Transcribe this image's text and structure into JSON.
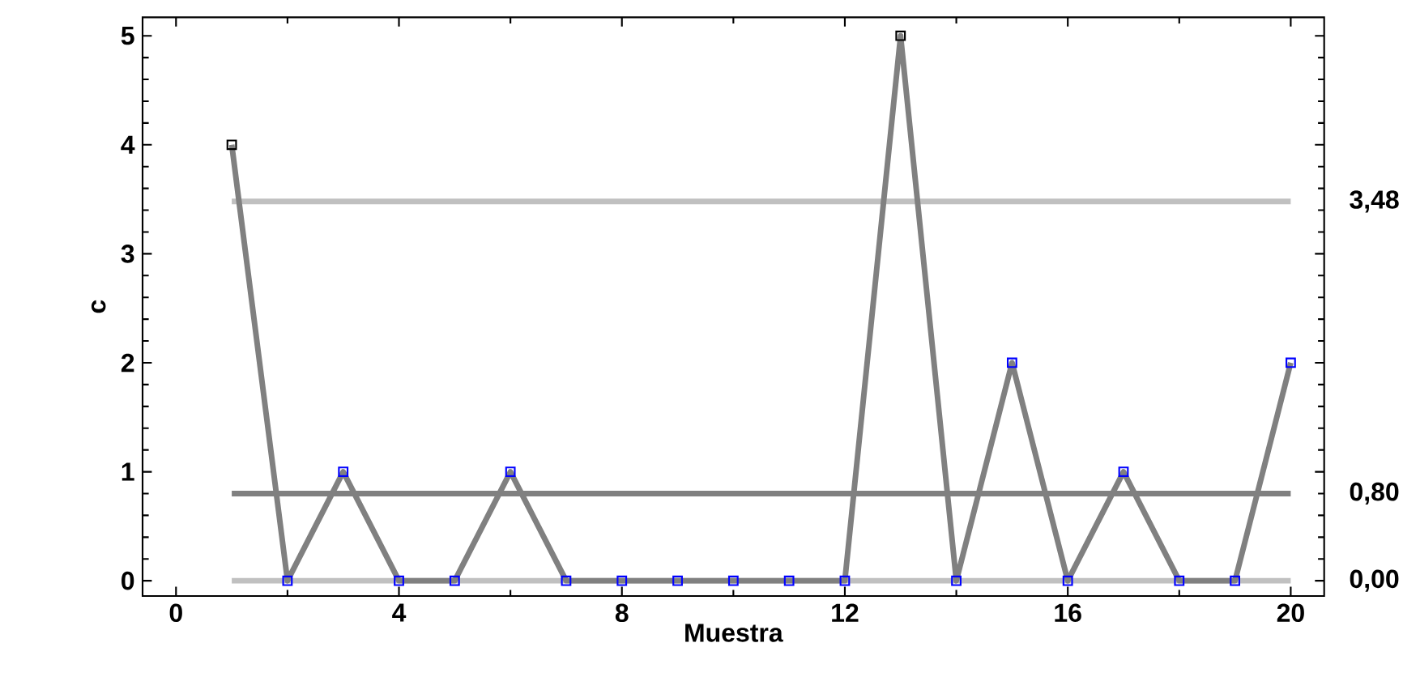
{
  "chart_data": {
    "type": "line",
    "xlabel": "Muestra",
    "ylabel": "c",
    "x": [
      1,
      2,
      3,
      4,
      5,
      6,
      7,
      8,
      9,
      10,
      11,
      12,
      13,
      14,
      15,
      16,
      17,
      18,
      19,
      20
    ],
    "series": [
      {
        "color": "#808080",
        "values": [
          4,
          0,
          1,
          0,
          0,
          1,
          0,
          0,
          0,
          0,
          0,
          0,
          5,
          0,
          2,
          0,
          1,
          0,
          0,
          2
        ],
        "colors": [
          "#000000",
          "#0000ff",
          "#0000ff",
          "#0000ff",
          "#0000ff",
          "#0000ff",
          "#0000ff",
          "#0000ff",
          "#0000ff",
          "#0000ff",
          "#0000ff",
          "#0000ff",
          "#000000",
          "#0000ff",
          "#0000ff",
          "#0000ff",
          "#0000ff",
          "#0000ff",
          "#0000ff",
          "#0000ff"
        ]
      }
    ],
    "marker": "square",
    "line_style": "solid",
    "grid": false,
    "xlim": [
      -0.6,
      20.6
    ],
    "ylim": [
      -0.14,
      5.17
    ],
    "xticks": [
      0,
      4,
      8,
      12,
      16,
      20
    ],
    "yticks": [
      0,
      1,
      2,
      3,
      4,
      5
    ],
    "ref_lines": [
      {
        "axis": "y",
        "value": 3.48,
        "label": "3,48",
        "color": "#c0c0c0"
      },
      {
        "axis": "y",
        "value": 0.8,
        "label": "0,80",
        "color": "#808080"
      },
      {
        "axis": "y",
        "value": 0,
        "label": "0,00",
        "color": "#c0c0c0"
      }
    ]
  }
}
